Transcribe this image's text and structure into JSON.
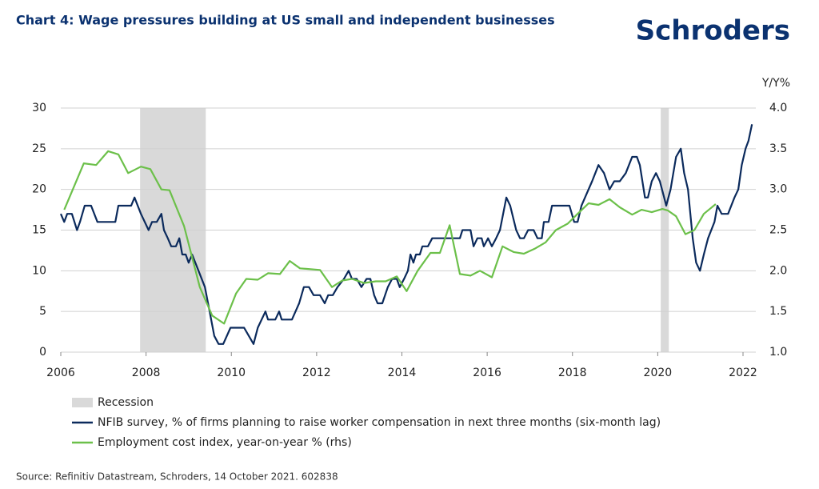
{
  "chart_data": {
    "type": "line",
    "title": "Chart 4: Wage pressures building at US small and independent businesses",
    "brand": "Schroders",
    "y2_label": "Y/Y%",
    "source": "Source: Refinitiv Datastream, Schroders, 14 October 2021. 602838",
    "recession_name": "Recession",
    "recession_color": "#d9d9d9",
    "recessions": [
      [
        2007.86,
        2009.4
      ],
      [
        2020.07,
        2020.26
      ]
    ],
    "xlim": [
      2006,
      2022.3
    ],
    "xticks": [
      2006,
      2008,
      2010,
      2012,
      2014,
      2016,
      2018,
      2020,
      2022
    ],
    "ylim": [
      0,
      30
    ],
    "yticks": [
      0,
      5,
      10,
      15,
      20,
      25,
      30
    ],
    "y2lim": [
      1,
      4
    ],
    "y2ticks": [
      {
        "value": 1,
        "label": "1.0"
      },
      {
        "value": 1.5,
        "label": "1.5"
      },
      {
        "value": 2,
        "label": "2.0"
      },
      {
        "value": 2.5,
        "label": "2.5"
      },
      {
        "value": 3,
        "label": "3.0"
      },
      {
        "value": 3.5,
        "label": "3.5"
      },
      {
        "value": 4,
        "label": "4.0"
      }
    ],
    "grid": true,
    "series": [
      {
        "name": "NFIB survey, % of firms planning to raise worker compensation in next three months (six-month lag)",
        "color": "#0b2a5c",
        "axis": "y",
        "x": [
          2006.0,
          2006.08,
          2006.15,
          2006.26,
          2006.38,
          2006.45,
          2006.56,
          2006.71,
          2006.86,
          2007.28,
          2007.35,
          2007.65,
          2007.73,
          2007.88,
          2008.06,
          2008.14,
          2008.25,
          2008.36,
          2008.42,
          2008.51,
          2008.59,
          2008.7,
          2008.78,
          2008.85,
          2008.93,
          2009.0,
          2009.08,
          2009.23,
          2009.38,
          2009.49,
          2009.6,
          2009.7,
          2009.81,
          2009.98,
          2010.3,
          2010.41,
          2010.52,
          2010.62,
          2010.8,
          2010.86,
          2011.03,
          2011.12,
          2011.18,
          2011.42,
          2011.59,
          2011.7,
          2011.82,
          2011.93,
          2012.08,
          2012.19,
          2012.27,
          2012.38,
          2012.49,
          2012.64,
          2012.75,
          2012.83,
          2012.94,
          2013.05,
          2013.17,
          2013.26,
          2013.35,
          2013.43,
          2013.54,
          2013.67,
          2013.77,
          2013.88,
          2013.95,
          2014.05,
          2014.14,
          2014.2,
          2014.27,
          2014.33,
          2014.42,
          2014.48,
          2014.61,
          2014.71,
          2015.36,
          2015.42,
          2015.61,
          2015.68,
          2015.77,
          2015.87,
          2015.92,
          2016.02,
          2016.11,
          2016.21,
          2016.3,
          2016.45,
          2016.54,
          2016.68,
          2016.77,
          2016.86,
          2016.96,
          2017.09,
          2017.18,
          2017.28,
          2017.33,
          2017.44,
          2017.52,
          2017.93,
          2018.04,
          2018.12,
          2018.21,
          2018.46,
          2018.61,
          2018.74,
          2018.87,
          2018.98,
          2019.11,
          2019.25,
          2019.4,
          2019.51,
          2019.58,
          2019.7,
          2019.77,
          2019.86,
          2019.96,
          2020.05,
          2020.15,
          2020.2,
          2020.3,
          2020.43,
          2020.54,
          2020.62,
          2020.71,
          2020.82,
          2020.9,
          2020.99,
          2021.08,
          2021.18,
          2021.33,
          2021.4,
          2021.5,
          2021.65,
          2021.8,
          2021.89,
          2021.97,
          2022.06,
          2022.13,
          2022.21
        ],
        "values": [
          17,
          16,
          17,
          17,
          15,
          16,
          18,
          18,
          16,
          16,
          18,
          18,
          19,
          17,
          15,
          16,
          16,
          17,
          15,
          14,
          13,
          13,
          14,
          12,
          12,
          11,
          12,
          10,
          8,
          5,
          2,
          1,
          1,
          3,
          3,
          2,
          1,
          3,
          5,
          4,
          4,
          5,
          4,
          4,
          6,
          8,
          8,
          7,
          7,
          6,
          7,
          7,
          8,
          9,
          10,
          9,
          9,
          8,
          9,
          9,
          7,
          6,
          6,
          8,
          9,
          9,
          8,
          9,
          10,
          12,
          11,
          12,
          12,
          13,
          13,
          14,
          14,
          15,
          15,
          13,
          14,
          14,
          13,
          14,
          13,
          14,
          15,
          19,
          18,
          15,
          14,
          14,
          15,
          15,
          14,
          14,
          16,
          16,
          18,
          18,
          16,
          16,
          18,
          21,
          23,
          22,
          20,
          21,
          21,
          22,
          24,
          24,
          23,
          19,
          19,
          21,
          22,
          21,
          19,
          18,
          20,
          24,
          25,
          22,
          20,
          14,
          11,
          10,
          12,
          14,
          16,
          18,
          17,
          17,
          19,
          20,
          23,
          25,
          26,
          28
        ]
      },
      {
        "name": "Employment cost index, year-on-year % (rhs)",
        "color": "#6cc04a",
        "axis": "y2",
        "x": [
          2006.08,
          2006.54,
          2006.83,
          2007.11,
          2007.35,
          2007.58,
          2007.88,
          2008.1,
          2008.36,
          2008.55,
          2008.89,
          2009.26,
          2009.55,
          2009.83,
          2010.11,
          2010.35,
          2010.62,
          2010.86,
          2011.14,
          2011.37,
          2011.61,
          2012.08,
          2012.36,
          2012.6,
          2012.83,
          2013.11,
          2013.39,
          2013.62,
          2013.88,
          2014.11,
          2014.37,
          2014.67,
          2014.89,
          2015.12,
          2015.36,
          2015.61,
          2015.83,
          2016.11,
          2016.36,
          2016.62,
          2016.86,
          2017.11,
          2017.37,
          2017.61,
          2017.89,
          2018.12,
          2018.38,
          2018.61,
          2018.87,
          2019.11,
          2019.4,
          2019.62,
          2019.86,
          2020.11,
          2020.24,
          2020.43,
          2020.65,
          2020.86,
          2021.08,
          2021.36
        ],
        "values": [
          2.75,
          3.32,
          3.3,
          3.47,
          3.43,
          3.2,
          3.28,
          3.25,
          3.0,
          2.99,
          2.55,
          1.8,
          1.45,
          1.35,
          1.72,
          1.9,
          1.89,
          1.97,
          1.96,
          2.12,
          2.03,
          2.01,
          1.8,
          1.88,
          1.9,
          1.85,
          1.87,
          1.87,
          1.93,
          1.75,
          2.0,
          2.22,
          2.22,
          2.56,
          1.96,
          1.94,
          2.0,
          1.92,
          2.3,
          2.23,
          2.21,
          2.27,
          2.35,
          2.5,
          2.58,
          2.7,
          2.83,
          2.81,
          2.88,
          2.78,
          2.69,
          2.75,
          2.72,
          2.76,
          2.74,
          2.67,
          2.45,
          2.5,
          2.7,
          2.82
        ]
      }
    ]
  }
}
